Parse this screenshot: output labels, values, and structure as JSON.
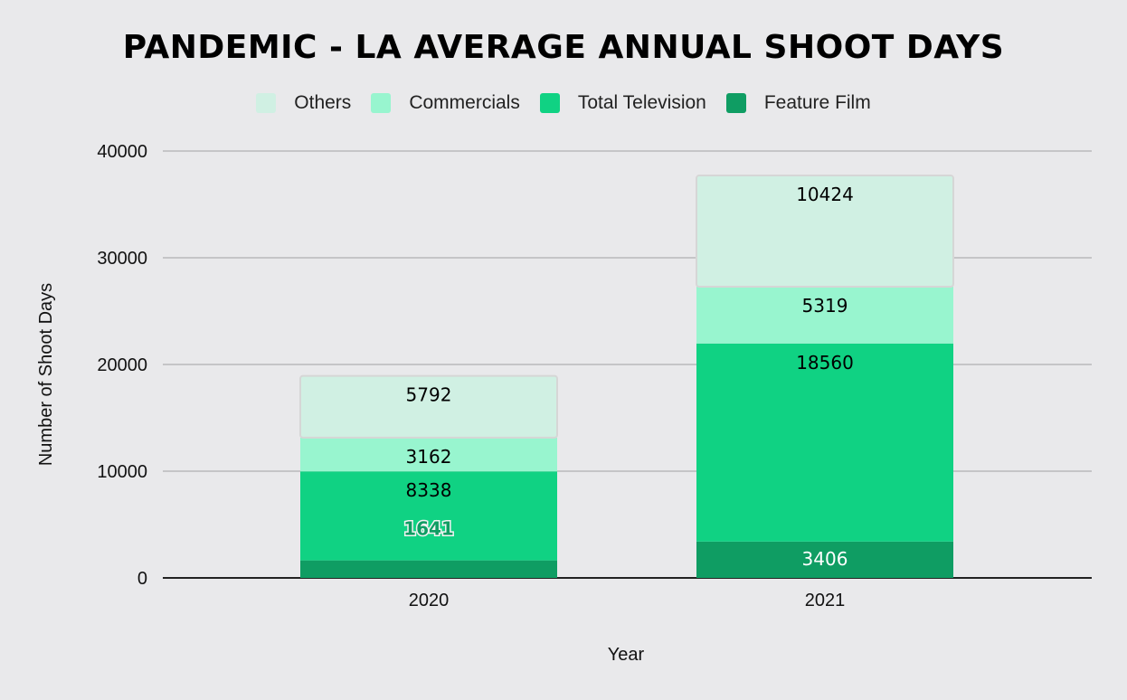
{
  "chart_data": {
    "type": "bar",
    "stacked": true,
    "title": "PANDEMIC - LA AVERAGE ANNUAL SHOOT DAYS",
    "xlabel": "Year",
    "ylabel": "Number of Shoot Days",
    "ylim": [
      0,
      40000
    ],
    "yticks": [
      "0",
      "10000",
      "20000",
      "30000",
      "40000"
    ],
    "ytick_values": [
      0,
      10000,
      20000,
      30000,
      40000
    ],
    "grid": true,
    "legend_position": "top",
    "categories": [
      "2020",
      "2021"
    ],
    "series": [
      {
        "name": "Feature Film",
        "color": "#0f9d63",
        "label_color": "#ffffff",
        "values": [
          1641,
          3406
        ]
      },
      {
        "name": "Total Television",
        "color": "#10d283",
        "label_color": "#000000",
        "values": [
          8338,
          18560
        ]
      },
      {
        "name": "Commercials",
        "color": "#98f5cf",
        "label_color": "#000000",
        "values": [
          3162,
          5319
        ]
      },
      {
        "name": "Others",
        "color": "#d0f0e3",
        "label_color": "#000000",
        "values": [
          5792,
          10424
        ]
      }
    ],
    "legend_order": [
      "Others",
      "Commercials",
      "Total Television",
      "Feature Film"
    ]
  }
}
